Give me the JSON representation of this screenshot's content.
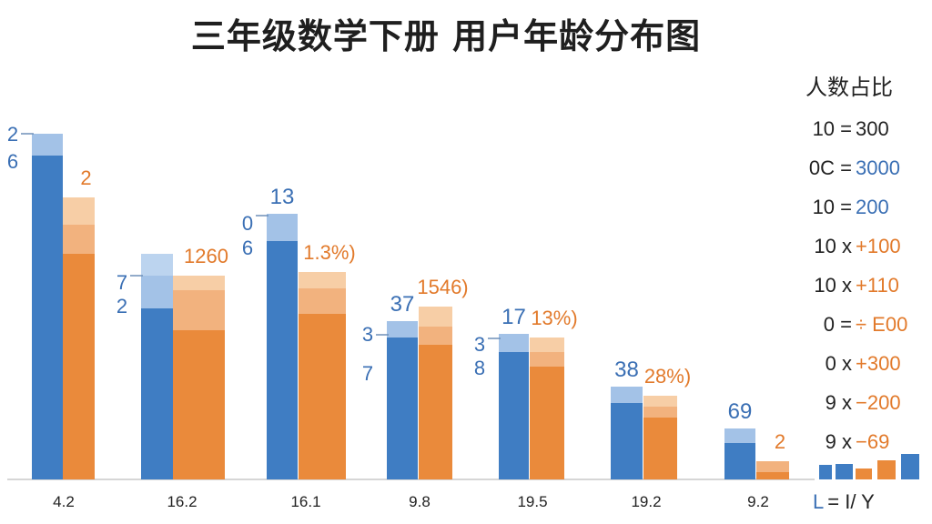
{
  "colors": {
    "blue_dark": "#3f7dc3",
    "blue_mid": "#a3c2e7",
    "blue_light": "#bcd4ef",
    "orange_dark": "#ea8a3b",
    "orange_mid": "#f2b27e",
    "orange_light": "#f7cea6",
    "blue_text": "#3a6fb4",
    "orange_text": "#e27a2b",
    "text_dark": "#222222",
    "axis": "#c9c9c9",
    "tick_dash": "#6d8fb8"
  },
  "chart_data": {
    "type": "bar",
    "title": "三年级数学下册 用户年龄分布图",
    "stacked": true,
    "categories": [
      "4.2",
      "16.2",
      "16.1",
      "9.8",
      "19.5",
      "19.2",
      "9.2"
    ],
    "ylim": [
      0,
      100
    ],
    "grid": false,
    "legend": "right",
    "series": [
      {
        "color": "blue",
        "segments": [
          [
            89,
            6
          ],
          [
            47,
            9,
            6
          ],
          [
            65.5,
            7.5
          ],
          [
            39,
            4.5
          ],
          [
            35,
            5
          ],
          [
            21,
            4.5
          ],
          [
            10,
            4
          ]
        ],
        "labels_top": [
          "",
          "",
          "13",
          "37",
          "17",
          "38",
          "69"
        ],
        "labels_side": [
          [
            "2",
            "6"
          ],
          [
            "7",
            "2"
          ],
          [
            "0",
            "6"
          ],
          [
            "3",
            "7"
          ],
          [
            "3",
            "8"
          ],
          [],
          []
        ]
      },
      {
        "color": "orange",
        "segments": [
          [
            62,
            8,
            7.5
          ],
          [
            41,
            11,
            4
          ],
          [
            45.5,
            7,
            4.5
          ],
          [
            37,
            5,
            5.5
          ],
          [
            31,
            4,
            4
          ],
          [
            17,
            3,
            3
          ],
          [
            2,
            3
          ]
        ],
        "labels_top": [
          "2",
          "1260",
          "1.3%)",
          "1546)",
          "13%)",
          "28%)",
          "2"
        ]
      }
    ]
  },
  "side_panel": {
    "heading": "人数占比",
    "rows": [
      {
        "left": "10 =",
        "right": "300"
      },
      {
        "left": "0C =",
        "right": "3000"
      },
      {
        "left": "10 =",
        "right": "200"
      },
      {
        "left": "10 x",
        "right": "+100"
      },
      {
        "left": "10 x",
        "right": "+110"
      },
      {
        "left": "0 =",
        "right": "÷ E00"
      },
      {
        "left": "0 x",
        "right": "+300"
      },
      {
        "left": "9 x",
        "right": "−200"
      },
      {
        "left": "9 x",
        "right": "−69"
      }
    ],
    "footer": {
      "left": "L",
      "right": "= I/ Y"
    }
  }
}
